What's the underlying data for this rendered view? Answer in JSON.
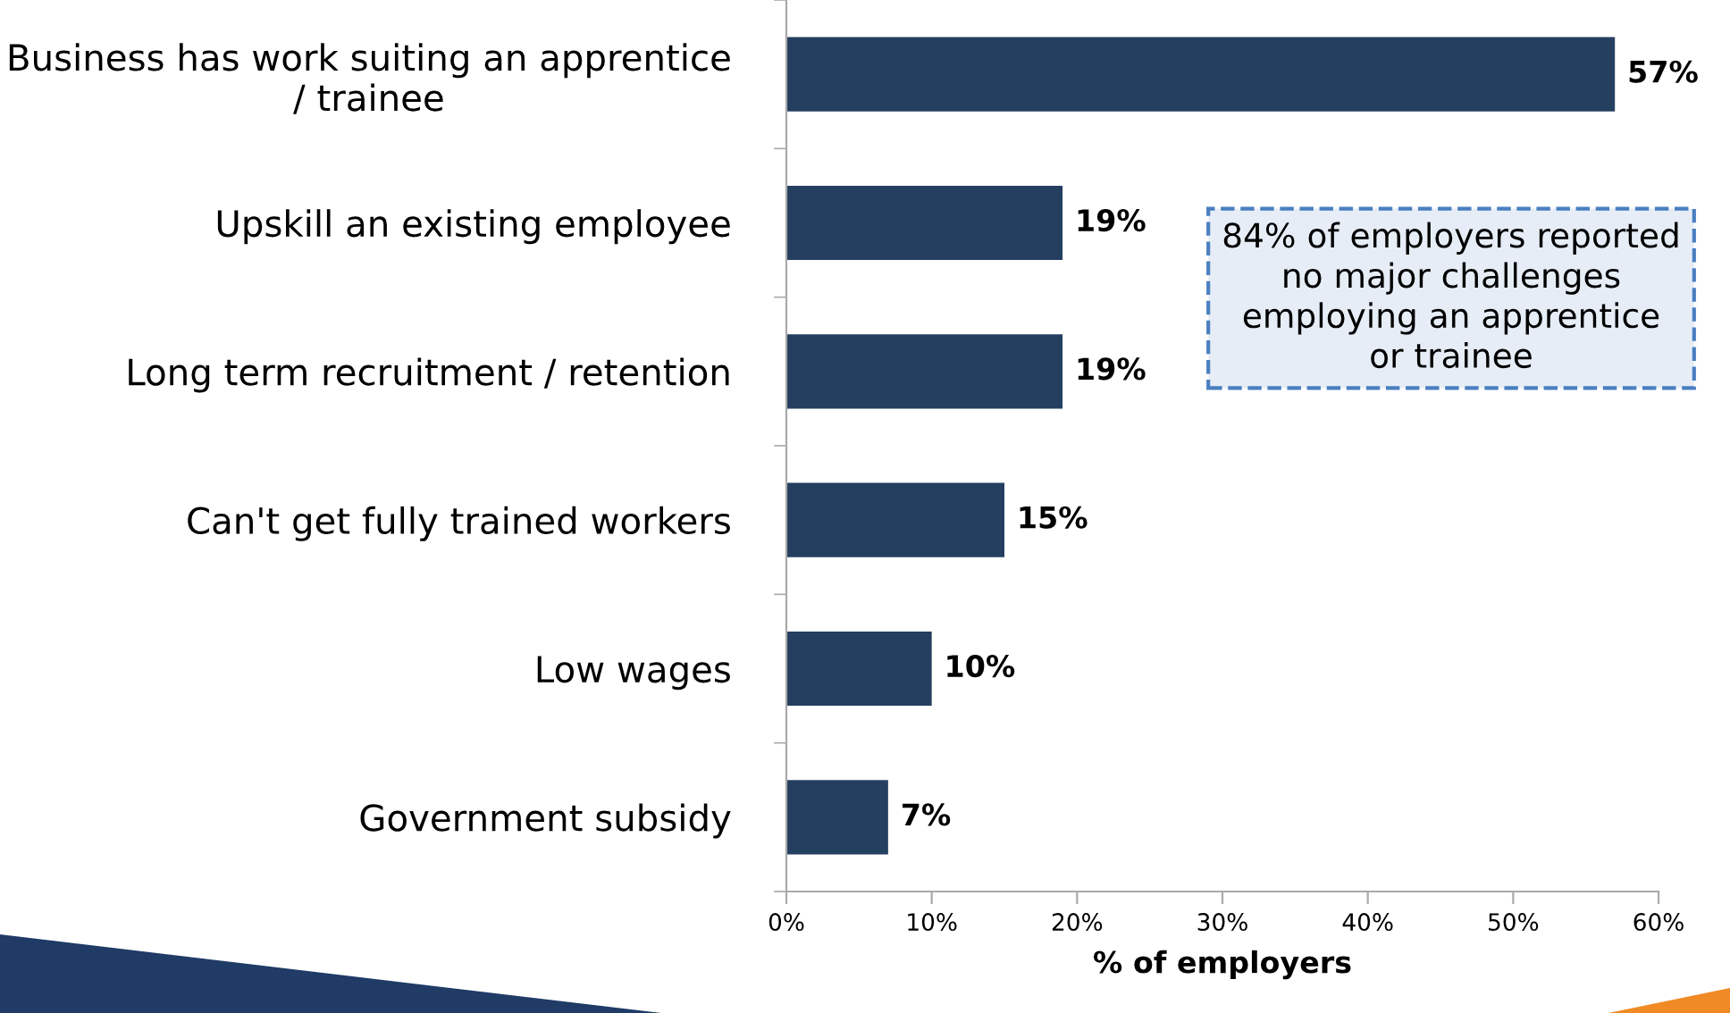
{
  "chart_data": {
    "type": "bar",
    "orientation": "horizontal",
    "categories": [
      "Business has work suiting an apprentice\n/ trainee",
      "Upskill an existing employee",
      "Long term recruitment / retention",
      "Can't get fully trained workers",
      "Low wages",
      "Government subsidy"
    ],
    "values": [
      57,
      19,
      19,
      15,
      10,
      7
    ],
    "value_labels": [
      "57%",
      "19%",
      "19%",
      "15%",
      "10%",
      "7%"
    ],
    "color": "#243f60",
    "xlabel": "% of employers",
    "xlim": [
      0,
      60
    ],
    "xticks": [
      {
        "value": 0,
        "label": "0%"
      },
      {
        "value": 10,
        "label": "10%"
      },
      {
        "value": 20,
        "label": "20%"
      },
      {
        "value": 30,
        "label": "30%"
      },
      {
        "value": 40,
        "label": "40%"
      },
      {
        "value": 50,
        "label": "50%"
      },
      {
        "value": 60,
        "label": "60%"
      }
    ],
    "grid": false,
    "annotations": [
      "84% of employers reported\nno major challenges\nemploying an apprentice\nor trainee"
    ]
  }
}
